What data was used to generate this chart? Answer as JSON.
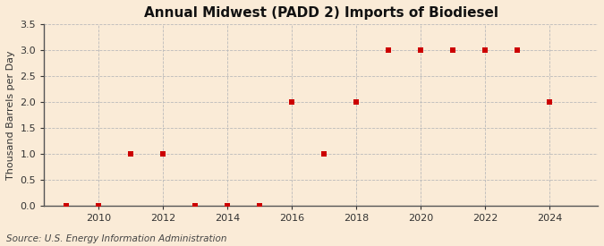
{
  "title": "Annual Midwest (PADD 2) Imports of Biodiesel",
  "ylabel": "Thousand Barrels per Day",
  "source": "Source: U.S. Energy Information Administration",
  "years": [
    2009,
    2010,
    2011,
    2012,
    2013,
    2014,
    2015,
    2016,
    2017,
    2018,
    2019,
    2020,
    2021,
    2022,
    2023,
    2024
  ],
  "values": [
    0.0,
    0.0,
    1.0,
    1.0,
    0.0,
    0.0,
    0.0,
    2.0,
    1.0,
    2.0,
    3.0,
    3.0,
    3.0,
    3.0,
    3.0,
    2.0
  ],
  "marker_color": "#cc0000",
  "marker": "s",
  "marker_size": 4,
  "ylim": [
    0,
    3.5
  ],
  "yticks": [
    0.0,
    0.5,
    1.0,
    1.5,
    2.0,
    2.5,
    3.0,
    3.5
  ],
  "xticks": [
    2010,
    2012,
    2014,
    2016,
    2018,
    2020,
    2022,
    2024
  ],
  "xlim": [
    2008.3,
    2025.5
  ],
  "bg_color": "#faebd7",
  "grid_color": "#bbbbbb",
  "title_fontsize": 11,
  "label_fontsize": 8,
  "tick_fontsize": 8,
  "source_fontsize": 7.5
}
